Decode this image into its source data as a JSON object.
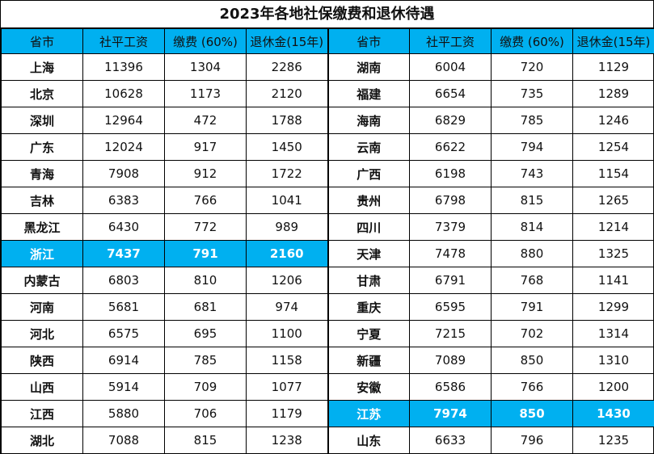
{
  "title": "2023年各地社保缴费和退休待遇",
  "highlight_color": "#00b0f0",
  "headers": [
    "省市",
    "社平工资",
    "缴费 (60%)",
    "退休金(15年)"
  ],
  "left": [
    [
      "上海",
      "11396",
      "1304",
      "2286"
    ],
    [
      "北京",
      "10628",
      "1173",
      "2120"
    ],
    [
      "深圳",
      "12964",
      "472",
      "1788"
    ],
    [
      "广东",
      "12024",
      "917",
      "1450"
    ],
    [
      "青海",
      "7908",
      "912",
      "1722"
    ],
    [
      "吉林",
      "6383",
      "766",
      "1041"
    ],
    [
      "黑龙江",
      "6430",
      "772",
      "989"
    ],
    [
      "浙江",
      "7437",
      "791",
      "2160"
    ],
    [
      "内蒙古",
      "6803",
      "810",
      "1206"
    ],
    [
      "河南",
      "5681",
      "681",
      "974"
    ],
    [
      "河北",
      "6575",
      "695",
      "1100"
    ],
    [
      "陕西",
      "6914",
      "785",
      "1158"
    ],
    [
      "山西",
      "5914",
      "709",
      "1077"
    ],
    [
      "江西",
      "5880",
      "706",
      "1179"
    ],
    [
      "湖北",
      "7088",
      "815",
      "1238"
    ]
  ],
  "right": [
    [
      "湖南",
      "6004",
      "720",
      "1129"
    ],
    [
      "福建",
      "6654",
      "735",
      "1289"
    ],
    [
      "海南",
      "6829",
      "785",
      "1246"
    ],
    [
      "云南",
      "6622",
      "794",
      "1254"
    ],
    [
      "广西",
      "6198",
      "743",
      "1154"
    ],
    [
      "贵州",
      "6798",
      "815",
      "1265"
    ],
    [
      "四川",
      "7379",
      "814",
      "1214"
    ],
    [
      "天津",
      "7478",
      "880",
      "1325"
    ],
    [
      "甘肃",
      "6791",
      "768",
      "1141"
    ],
    [
      "重庆",
      "6595",
      "791",
      "1299"
    ],
    [
      "宁夏",
      "7215",
      "702",
      "1314"
    ],
    [
      "新疆",
      "7089",
      "850",
      "1310"
    ],
    [
      "安徽",
      "6586",
      "766",
      "1200"
    ],
    [
      "江苏",
      "7974",
      "850",
      "1430"
    ],
    [
      "山东",
      "6633",
      "796",
      "1235"
    ]
  ],
  "highlight_left_row": 7,
  "highlight_right_row": 13
}
